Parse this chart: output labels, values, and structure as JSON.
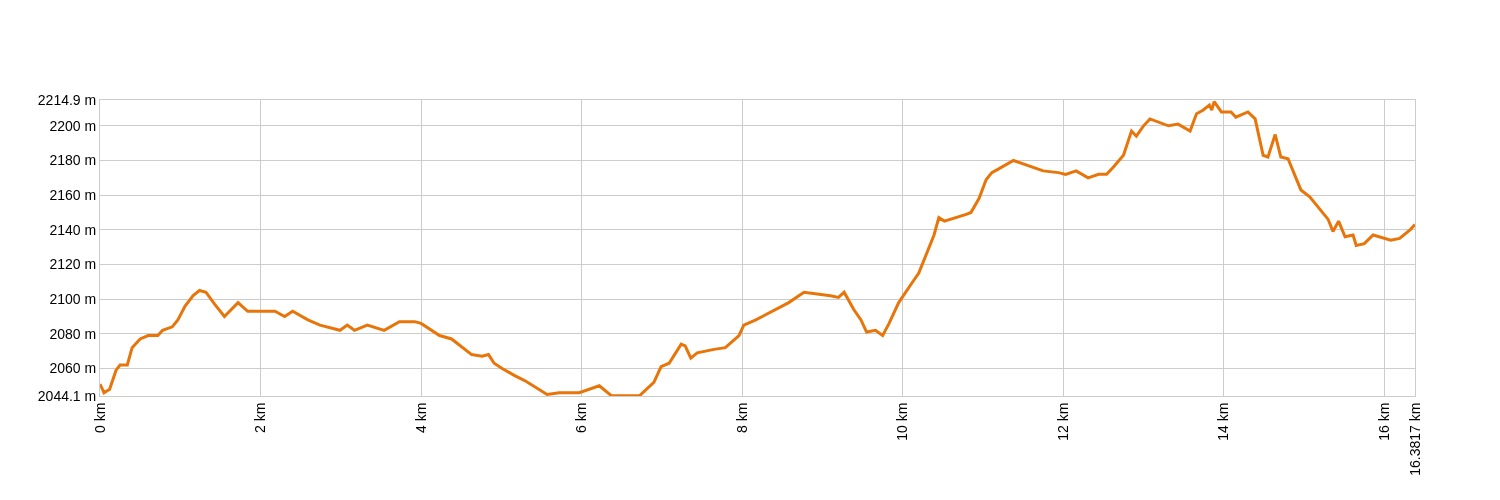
{
  "chart_data": {
    "type": "line",
    "marker": "none",
    "line_style": "solid",
    "grid": true,
    "xlim": [
      0,
      16.3817
    ],
    "ylim": [
      2044.1,
      2214.9
    ],
    "xticks": [
      {
        "value": 0,
        "label": "0 km"
      },
      {
        "value": 2,
        "label": "2 km"
      },
      {
        "value": 4,
        "label": "4 km"
      },
      {
        "value": 6,
        "label": "6 km"
      },
      {
        "value": 8,
        "label": "8 km"
      },
      {
        "value": 10,
        "label": "10 km"
      },
      {
        "value": 12,
        "label": "12 km"
      },
      {
        "value": 14,
        "label": "14 km"
      },
      {
        "value": 16,
        "label": "16 km"
      },
      {
        "value": 16.3817,
        "label": "16.3817 km"
      }
    ],
    "yticks": [
      {
        "value": 2044.1,
        "label": "2044.1 m"
      },
      {
        "value": 2060,
        "label": "2060 m"
      },
      {
        "value": 2080,
        "label": "2080 m"
      },
      {
        "value": 2100,
        "label": "2100 m"
      },
      {
        "value": 2120,
        "label": "2120 m"
      },
      {
        "value": 2140,
        "label": "2140 m"
      },
      {
        "value": 2160,
        "label": "2160 m"
      },
      {
        "value": 2180,
        "label": "2180 m"
      },
      {
        "value": 2200,
        "label": "2200 m"
      },
      {
        "value": 2214.9,
        "label": "2214.9 m"
      }
    ],
    "series": [
      {
        "color": "#e8750a",
        "x": [
          0,
          0.05,
          0.12,
          0.2,
          0.25,
          0.34,
          0.4,
          0.5,
          0.6,
          0.72,
          0.78,
          0.9,
          0.97,
          1.06,
          1.16,
          1.24,
          1.32,
          1.43,
          1.55,
          1.72,
          1.84,
          2.01,
          2.18,
          2.3,
          2.4,
          2.59,
          2.74,
          2.99,
          3.08,
          3.17,
          3.33,
          3.54,
          3.73,
          3.92,
          4.0,
          4.23,
          4.38,
          4.63,
          4.76,
          4.84,
          4.91,
          5.01,
          5.16,
          5.29,
          5.57,
          5.72,
          5.97,
          6.22,
          6.37,
          6.49,
          6.72,
          6.9,
          6.99,
          7.09,
          7.24,
          7.29,
          7.36,
          7.44,
          7.65,
          7.79,
          7.96,
          8.02,
          8.17,
          8.58,
          8.77,
          9.1,
          9.2,
          9.27,
          9.39,
          9.48,
          9.55,
          9.66,
          9.75,
          9.83,
          9.95,
          10.11,
          10.2,
          10.39,
          10.45,
          10.52,
          10.8,
          10.85,
          10.95,
          11.04,
          11.11,
          11.19,
          11.38,
          11.75,
          11.94,
          12.03,
          12.16,
          12.31,
          12.44,
          12.54,
          12.62,
          12.75,
          12.85,
          12.91,
          13.0,
          13.08,
          13.31,
          13.43,
          13.58,
          13.66,
          13.74,
          13.82,
          13.85,
          13.88,
          13.97,
          14.09,
          14.15,
          14.3,
          14.39,
          14.49,
          14.55,
          14.64,
          14.71,
          14.8,
          14.96,
          15.07,
          15.3,
          15.36,
          15.43,
          15.51,
          15.61,
          15.65,
          15.75,
          15.86,
          16.08,
          16.19,
          16.32,
          16.3817
        ],
        "values": [
          2051,
          2046,
          2048,
          2059,
          2062,
          2062,
          2072,
          2077,
          2079,
          2079,
          2082,
          2084,
          2088,
          2096,
          2102,
          2105,
          2104,
          2097,
          2090,
          2098,
          2093,
          2093,
          2093,
          2090,
          2093,
          2088,
          2085,
          2082,
          2085,
          2082,
          2085,
          2082,
          2087,
          2087,
          2086,
          2079,
          2077,
          2068,
          2067,
          2068,
          2063,
          2060,
          2056,
          2053,
          2045,
          2046,
          2046,
          2050,
          2044.3,
          2044.3,
          2044.2,
          2052,
          2061,
          2063,
          2074,
          2073,
          2066,
          2069,
          2071,
          2072,
          2079,
          2085,
          2088,
          2098,
          2104,
          2102,
          2101,
          2104,
          2094,
          2088,
          2081,
          2082,
          2079,
          2086,
          2098,
          2109,
          2115,
          2137,
          2147,
          2145,
          2149,
          2150,
          2158,
          2169,
          2173,
          2175,
          2180,
          2174,
          2173,
          2172,
          2174,
          2170,
          2172,
          2172,
          2176,
          2183,
          2197,
          2194,
          2200,
          2204,
          2200,
          2201,
          2197,
          2207,
          2209,
          2212,
          2209,
          2214,
          2208,
          2208,
          2205,
          2208,
          2204,
          2183,
          2182,
          2195,
          2182,
          2181,
          2163,
          2159,
          2146,
          2139,
          2145,
          2136,
          2137,
          2131,
          2132,
          2137,
          2134,
          2135,
          2140,
          2143
        ]
      }
    ]
  }
}
